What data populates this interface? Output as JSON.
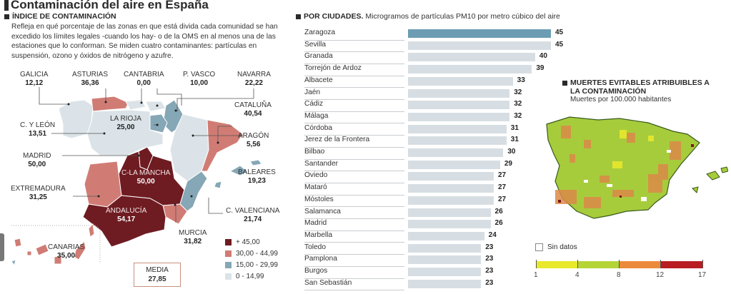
{
  "header": {
    "title": "Contaminación del aire en España"
  },
  "index_section": {
    "heading": "ÍNDICE DE CONTAMINACIÓN",
    "description": "Refleja en qué porcentaje de las zonas en que está divida cada comunidad se han excedido los límites legales -cuando los hay- o de la OMS en al menos una de las estaciones que lo conforman. Se miden cuatro contaminantes: partículas en suspensión, ozono y óxidos de nitrógeno y azufre.",
    "regions": [
      {
        "name": "GALICIA",
        "value": "12,12",
        "category": "0-14,99"
      },
      {
        "name": "ASTURIAS",
        "value": "36,36",
        "category": "30,00-44,99"
      },
      {
        "name": "CANTABRIA",
        "value": "0,00",
        "category": "0-14,99"
      },
      {
        "name": "P. VASCO",
        "value": "10,00",
        "category": "0-14,99"
      },
      {
        "name": "NAVARRA",
        "value": "22,22",
        "category": "15,00-29,99"
      },
      {
        "name": "CATALUÑA",
        "value": "40,54",
        "category": "30,00-44,99"
      },
      {
        "name": "LA RIOJA",
        "value": "25,00",
        "category": "15,00-29,99"
      },
      {
        "name": "C. Y LEÓN",
        "value": "13,51",
        "category": "0-14,99"
      },
      {
        "name": "ARAGÓN",
        "value": "5,56",
        "category": "0-14,99"
      },
      {
        "name": "MADRID",
        "value": "50,00",
        "category": "+45,00"
      },
      {
        "name": "C-LA MANCHA",
        "value": "50,00",
        "category": "+45,00"
      },
      {
        "name": "BALEARES",
        "value": "19,23",
        "category": "15,00-29,99"
      },
      {
        "name": "EXTREMADURA",
        "value": "31,25",
        "category": "30,00-44,99"
      },
      {
        "name": "C. VALENCIANA",
        "value": "21,74",
        "category": "15,00-29,99"
      },
      {
        "name": "ANDALUCÍA",
        "value": "54,17",
        "category": "+45,00"
      },
      {
        "name": "MURCIA",
        "value": "31,82",
        "category": "30,00-44,99"
      },
      {
        "name": "CANARIAS",
        "value": "35,00",
        "category": "30,00-44,99"
      }
    ],
    "legend": [
      {
        "label": "+ 45,00",
        "color": "#6e1c22"
      },
      {
        "label": "30,00 - 44,99",
        "color": "#d07c74"
      },
      {
        "label": "15,00 - 29,99",
        "color": "#85a7b6"
      },
      {
        "label": "0 - 14,99",
        "color": "#dbe3e8"
      }
    ],
    "media": {
      "label": "MEDIA",
      "value": "27,85"
    }
  },
  "chart_data": [
    {
      "type": "bar",
      "title": "POR CIUDADES.",
      "subtitle": "Microgramos de partículas PM10 por metro cúbico del aire",
      "orientation": "horizontal",
      "categories": [
        "Zaragoza",
        "Sevilla",
        "Granada",
        "Torrejón de Ardoz",
        "Albacete",
        "Jaén",
        "Cádiz",
        "Málaga",
        "Córdoba",
        "Jerez de la Frontera",
        "Bilbao",
        "Santander",
        "Oviedo",
        "Mataró",
        "Móstoles",
        "Salamanca",
        "Madrid",
        "Marbella",
        "Toledo",
        "Pamplona",
        "Burgos",
        "San Sebastián"
      ],
      "values": [
        45,
        45,
        40,
        39,
        33,
        32,
        32,
        32,
        31,
        31,
        30,
        29,
        27,
        27,
        27,
        26,
        26,
        24,
        23,
        23,
        23,
        23
      ],
      "highlight_index": 0,
      "colors": {
        "bar": "#d7dee3",
        "highlight": "#6c9db3"
      },
      "xlim": [
        0,
        45
      ]
    },
    {
      "type": "heatmap",
      "title": "MUERTES EVITABLES ATRIBUIBLES A LA CONTAMINACIÓN",
      "subtitle": "Muertes por 100.000 habitantes",
      "no_data_label": "Sin datos",
      "scale": {
        "ticks": [
          "1",
          "4",
          "8",
          "12",
          "17"
        ],
        "bins": [
          {
            "from": 1,
            "to": 4,
            "color": "#e8e82c"
          },
          {
            "from": 4,
            "to": 8,
            "color": "#b5d436"
          },
          {
            "from": 8,
            "to": 12,
            "color": "#ec8a3c"
          },
          {
            "from": 12,
            "to": 17,
            "color": "#b81d22"
          }
        ]
      }
    }
  ]
}
